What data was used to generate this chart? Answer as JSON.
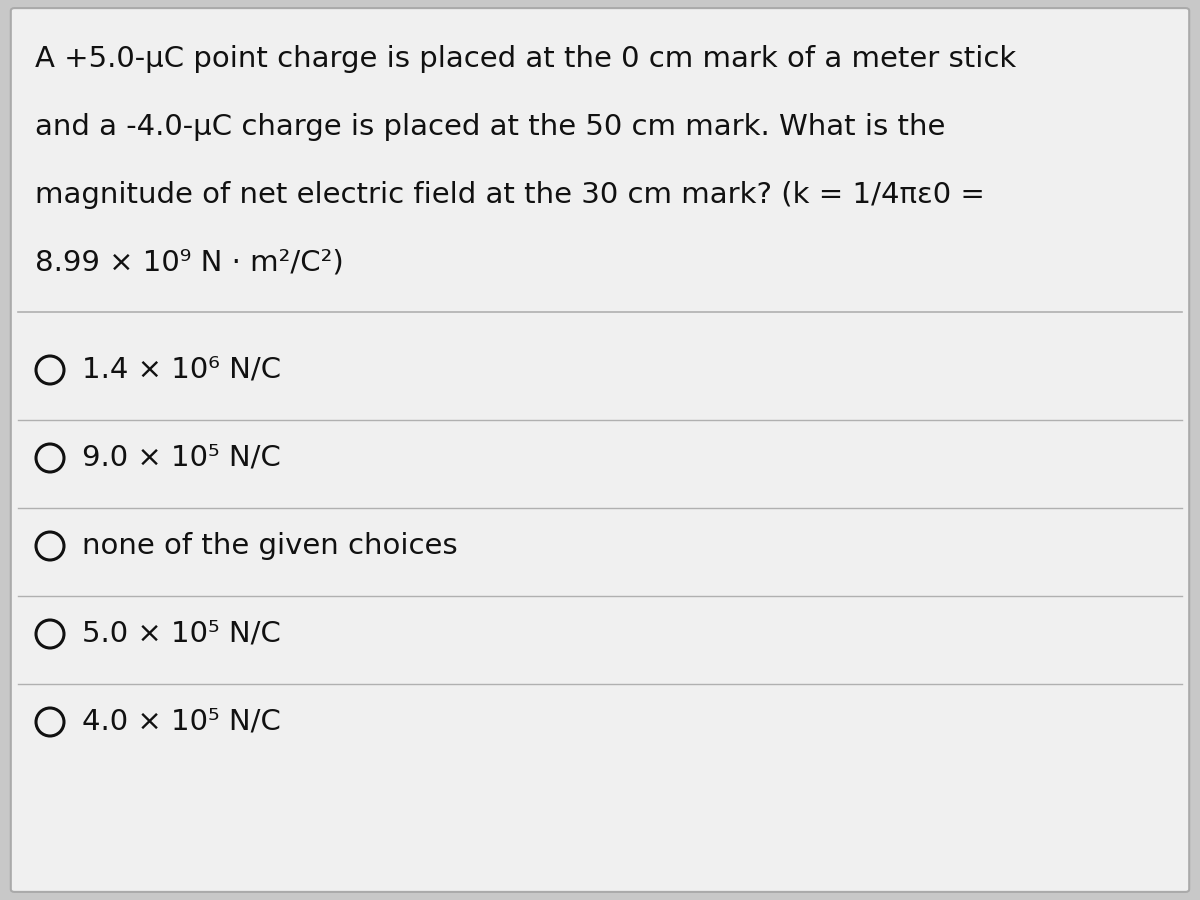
{
  "background_color": "#c8c8c8",
  "card_color": "#f0f0f0",
  "question_lines": [
    "A +5.0-μC point charge is placed at the 0 cm mark of a meter stick",
    "and a -4.0-μC charge is placed at the 50 cm mark. What is the",
    "magnitude of net electric field at the 30 cm mark? (k = 1/4πε0 =",
    "8.99 × 10⁹ N · m²/C²)"
  ],
  "choices": [
    "1.4 × 10⁶ N/C",
    "9.0 × 10⁵ N/C",
    "none of the given choices",
    "5.0 × 10⁵ N/C",
    "4.0 × 10⁵ N/C"
  ],
  "separator_color": "#b0b0b0",
  "text_color": "#111111",
  "question_fontsize": 21,
  "choice_fontsize": 21
}
